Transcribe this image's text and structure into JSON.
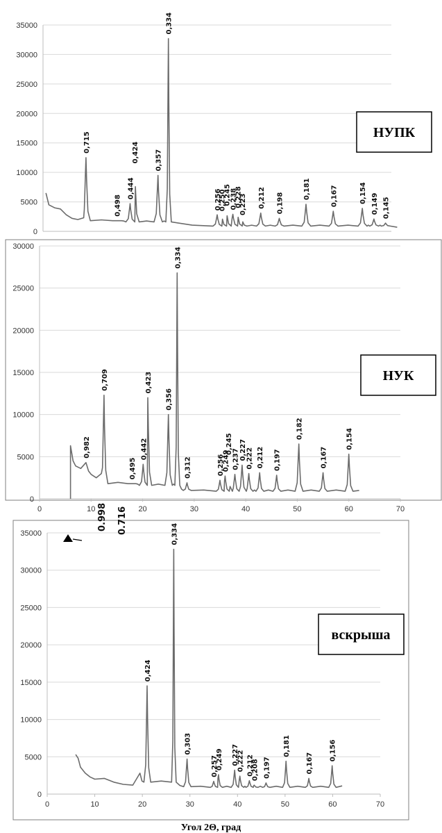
{
  "chart_data": [
    {
      "type": "line",
      "title": "НУПК",
      "ylim": [
        0,
        35000
      ],
      "xlim": [
        5,
        65
      ],
      "yticks": [
        "0",
        "5000",
        "10000",
        "15000",
        "20000",
        "25000",
        "30000",
        "35000"
      ],
      "xticks": [],
      "grid": true,
      "peaks": [
        {
          "label": "0,715",
          "x": 12.4,
          "y": 12500
        },
        {
          "label": "0,498",
          "x": 17.7,
          "y": 1800
        },
        {
          "label": "0,444",
          "x": 20.0,
          "y": 4700
        },
        {
          "label": "0,424",
          "x": 20.8,
          "y": 10800
        },
        {
          "label": "0,357",
          "x": 24.8,
          "y": 9500
        },
        {
          "label": "0,334",
          "x": 26.6,
          "y": 32700
        },
        {
          "label": "0,256",
          "x": 35.0,
          "y": 2800
        },
        {
          "label": "0,250",
          "x": 35.8,
          "y": 2700
        },
        {
          "label": "0,245",
          "x": 36.6,
          "y": 3600
        },
        {
          "label": "0,238",
          "x": 37.7,
          "y": 2900
        },
        {
          "label": "0,228",
          "x": 38.5,
          "y": 3200
        },
        {
          "label": "0,223",
          "x": 39.3,
          "y": 2000
        },
        {
          "label": "0,212",
          "x": 42.5,
          "y": 3100
        },
        {
          "label": "0,198",
          "x": 45.7,
          "y": 2200
        },
        {
          "label": "0,181",
          "x": 50.3,
          "y": 4600
        },
        {
          "label": "0,167",
          "x": 55.0,
          "y": 3400
        },
        {
          "label": "0,154",
          "x": 60.0,
          "y": 3900
        },
        {
          "label": "0,149",
          "x": 62.0,
          "y": 2100
        },
        {
          "label": "0,145",
          "x": 64.0,
          "y": 1400
        }
      ],
      "baseline": [
        [
          5.5,
          6500
        ],
        [
          6.0,
          4500
        ],
        [
          7,
          4000
        ],
        [
          8,
          3800
        ],
        [
          9,
          2800
        ],
        [
          10,
          2200
        ],
        [
          11,
          2000
        ],
        [
          12,
          2300
        ]
      ],
      "tail_end": [
        66.0,
        700
      ]
    },
    {
      "type": "line",
      "title": "НУК",
      "ylim": [
        0,
        30000
      ],
      "xlim": [
        0,
        70
      ],
      "yticks": [
        "0",
        "5000",
        "10000",
        "15000",
        "20000",
        "25000",
        "30000"
      ],
      "xticks": [
        "0",
        "10",
        "20",
        "30",
        "40",
        "50",
        "60",
        "70"
      ],
      "grid": true,
      "peaks": [
        {
          "label": "0,982",
          "x": 9.0,
          "y": 4300
        },
        {
          "label": "0,709",
          "x": 12.5,
          "y": 12300
        },
        {
          "label": "0,495",
          "x": 17.9,
          "y": 1800
        },
        {
          "label": "0,442",
          "x": 20.1,
          "y": 4100
        },
        {
          "label": "0,423",
          "x": 21.0,
          "y": 12000
        },
        {
          "label": "0,356",
          "x": 25.0,
          "y": 10000
        },
        {
          "label": "0,334",
          "x": 26.7,
          "y": 26800
        },
        {
          "label": "0,312",
          "x": 28.6,
          "y": 1900
        },
        {
          "label": "0,256",
          "x": 35.0,
          "y": 2200
        },
        {
          "label": "0,249",
          "x": 36.0,
          "y": 2700
        },
        {
          "label": "0,245",
          "x": 36.6,
          "y": 4700
        },
        {
          "label": "0,237",
          "x": 37.9,
          "y": 2900
        },
        {
          "label": "0,227",
          "x": 39.3,
          "y": 4000
        },
        {
          "label": "0,222",
          "x": 40.6,
          "y": 3000
        },
        {
          "label": "0,212",
          "x": 42.7,
          "y": 3100
        },
        {
          "label": "0,197",
          "x": 46.0,
          "y": 2800
        },
        {
          "label": "0,182",
          "x": 50.3,
          "y": 6500
        },
        {
          "label": "0,167",
          "x": 55.0,
          "y": 3100
        },
        {
          "label": "0,154",
          "x": 60.0,
          "y": 5300
        }
      ],
      "baseline": [
        [
          6.0,
          0
        ],
        [
          6.0,
          6300
        ],
        [
          6.5,
          4500
        ],
        [
          7,
          3900
        ],
        [
          8,
          3600
        ],
        [
          9,
          4300
        ],
        [
          9.5,
          3300
        ],
        [
          10,
          2900
        ],
        [
          11,
          2500
        ],
        [
          12,
          3000
        ]
      ],
      "tail_end": [
        62.0,
        1000
      ]
    },
    {
      "type": "line",
      "title": "вскрыша",
      "xlabel": "Угол 2Θ, град",
      "ylim": [
        0,
        35000
      ],
      "xlim": [
        0,
        70
      ],
      "yticks": [
        "0",
        "5000",
        "10000",
        "15000",
        "20000",
        "25000",
        "30000",
        "35000"
      ],
      "xticks": [
        "0",
        "10",
        "20",
        "30",
        "40",
        "50",
        "60",
        "70"
      ],
      "grid": true,
      "side_labels": [
        "0.998",
        "0.716"
      ],
      "peaks": [
        {
          "label": "0,424",
          "x": 21.0,
          "y": 14500
        },
        {
          "label": "0,334",
          "x": 26.6,
          "y": 32800
        },
        {
          "label": "0,303",
          "x": 29.4,
          "y": 4700
        },
        {
          "label": "0,257",
          "x": 35.0,
          "y": 1700
        },
        {
          "label": "0,249",
          "x": 36.0,
          "y": 2600
        },
        {
          "label": "0,227",
          "x": 39.4,
          "y": 3200
        },
        {
          "label": "0,222",
          "x": 40.5,
          "y": 2400
        },
        {
          "label": "0,212",
          "x": 42.5,
          "y": 1800
        },
        {
          "label": "0,208",
          "x": 43.5,
          "y": 1200
        },
        {
          "label": "0,197",
          "x": 46.0,
          "y": 1500
        },
        {
          "label": "0,181",
          "x": 50.2,
          "y": 4400
        },
        {
          "label": "0,167",
          "x": 55.0,
          "y": 2100
        },
        {
          "label": "0,156",
          "x": 59.9,
          "y": 3800
        }
      ],
      "baseline": [
        [
          6.0,
          5300
        ],
        [
          6.5,
          4800
        ],
        [
          7,
          3600
        ],
        [
          8,
          2800
        ],
        [
          9,
          2300
        ],
        [
          10,
          2000
        ],
        [
          12,
          2100
        ],
        [
          14,
          1600
        ],
        [
          16,
          1300
        ],
        [
          18,
          1200
        ],
        [
          19.5,
          2800
        ]
      ],
      "tail_end": [
        62.0,
        1100
      ]
    }
  ]
}
